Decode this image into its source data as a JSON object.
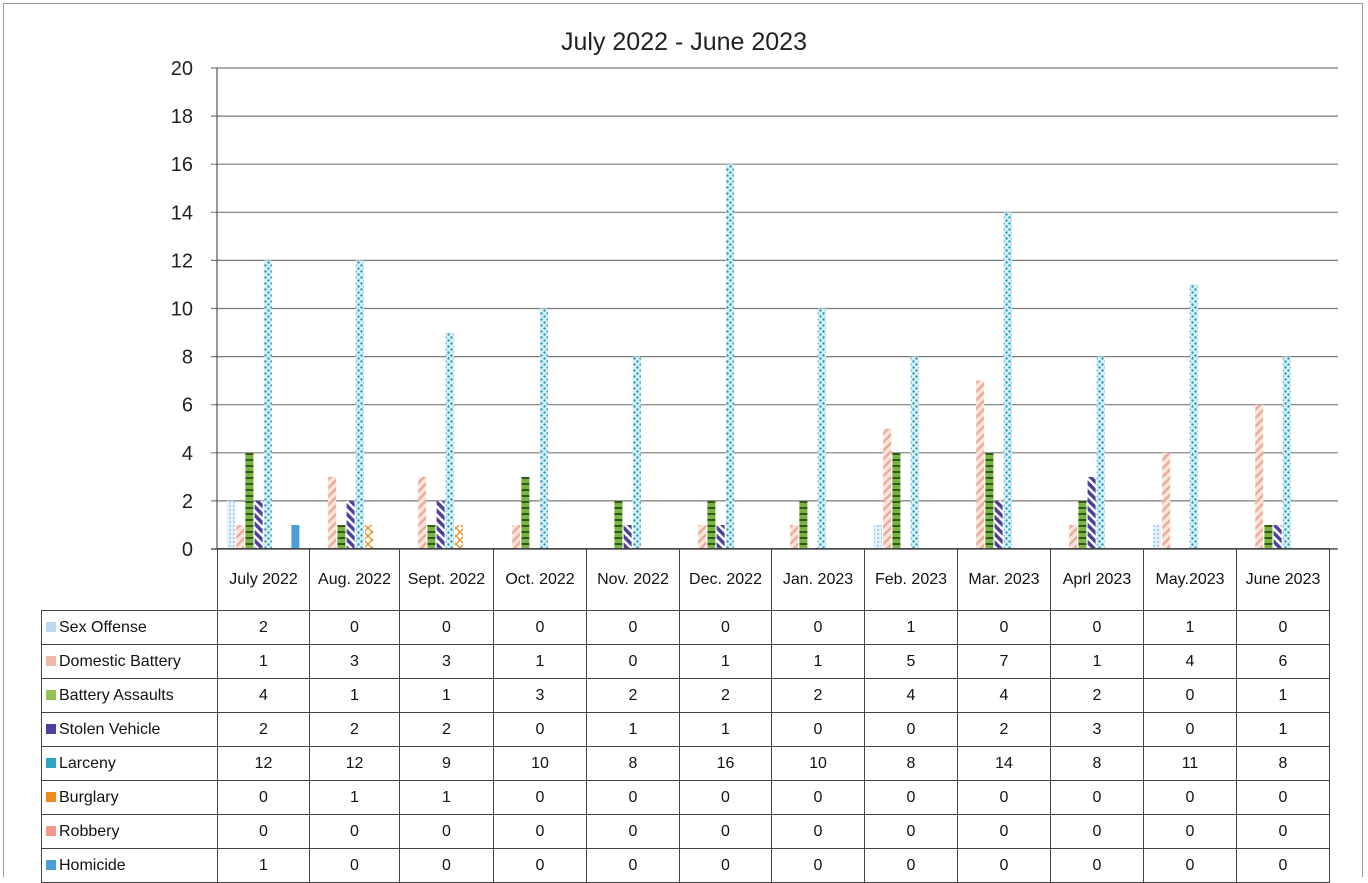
{
  "chart_data": {
    "type": "bar",
    "title": "July 2022 - June 2023",
    "ylim": [
      0,
      20
    ],
    "yticks": [
      0,
      2,
      4,
      6,
      8,
      10,
      12,
      14,
      16,
      18,
      20
    ],
    "grid": true,
    "legend": "table-below",
    "categories": [
      "July 2022",
      "Aug. 2022",
      "Sept. 2022",
      "Oct. 2022",
      "Nov. 2022",
      "Dec. 2022",
      "Jan. 2023",
      "Feb. 2023",
      "Mar. 2023",
      "Aprl 2023",
      "May.2023",
      "June 2023"
    ],
    "series": [
      {
        "name": "Sex Offense",
        "color": "#bcd9f2",
        "icon": "dotted-light-blue-swatch",
        "values": [
          2,
          0,
          0,
          0,
          0,
          0,
          0,
          1,
          0,
          0,
          1,
          0
        ]
      },
      {
        "name": "Domestic Battery",
        "color": "#f2b8a8",
        "icon": "diagonal-pink-swatch",
        "values": [
          1,
          3,
          3,
          1,
          0,
          1,
          1,
          5,
          7,
          1,
          4,
          6
        ]
      },
      {
        "name": "Battery Assaults",
        "color": "#92c353",
        "icon": "horizontal-green-swatch",
        "values": [
          4,
          1,
          1,
          3,
          2,
          2,
          2,
          4,
          4,
          2,
          0,
          1
        ]
      },
      {
        "name": "Stolen Vehicle",
        "color": "#4b3fa0",
        "icon": "diagonal-purple-swatch",
        "values": [
          2,
          2,
          2,
          0,
          1,
          1,
          0,
          0,
          2,
          3,
          0,
          1
        ]
      },
      {
        "name": "Larceny",
        "color": "#2ea3c4",
        "icon": "dotted-teal-swatch",
        "values": [
          12,
          12,
          9,
          10,
          8,
          16,
          10,
          8,
          14,
          8,
          11,
          8
        ]
      },
      {
        "name": "Burglary",
        "color": "#f08a1c",
        "icon": "zigzag-orange-swatch",
        "values": [
          0,
          1,
          1,
          0,
          0,
          0,
          0,
          0,
          0,
          0,
          0,
          0
        ]
      },
      {
        "name": "Robbery",
        "color": "#f29a8a",
        "icon": "solid-salmon-swatch",
        "values": [
          0,
          0,
          0,
          0,
          0,
          0,
          0,
          0,
          0,
          0,
          0,
          0
        ]
      },
      {
        "name": "Homicide",
        "color": "#4a9fd8",
        "icon": "solid-blue-swatch",
        "values": [
          1,
          0,
          0,
          0,
          0,
          0,
          0,
          0,
          0,
          0,
          0,
          0
        ]
      }
    ]
  }
}
